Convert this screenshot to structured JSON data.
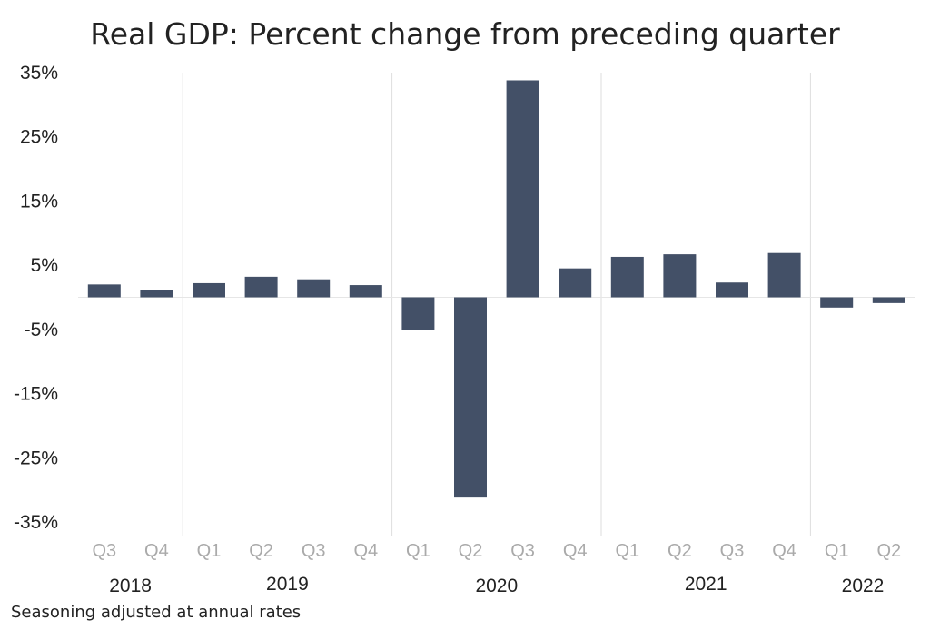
{
  "chart_data": {
    "type": "bar",
    "title": "Real GDP: Percent change from preceding quarter",
    "footnote": "Seasoning adjusted at annual rates",
    "categories": [
      "Q3",
      "Q4",
      "Q1",
      "Q2",
      "Q3",
      "Q4",
      "Q1",
      "Q2",
      "Q3",
      "Q4",
      "Q1",
      "Q2",
      "Q3",
      "Q4",
      "Q1",
      "Q2"
    ],
    "years": [
      {
        "label": "2018",
        "start": 0,
        "end": 1
      },
      {
        "label": "2019",
        "start": 2,
        "end": 5
      },
      {
        "label": "2020",
        "start": 6,
        "end": 9
      },
      {
        "label": "2021",
        "start": 10,
        "end": 13
      },
      {
        "label": "2022",
        "start": 14,
        "end": 15
      }
    ],
    "values": [
      2.0,
      1.2,
      2.2,
      3.2,
      2.8,
      1.9,
      -5.1,
      -31.2,
      33.8,
      4.5,
      6.3,
      6.7,
      2.3,
      6.9,
      -1.6,
      -0.9
    ],
    "yticks": [
      "35%",
      "25%",
      "15%",
      "5%",
      "-5%",
      "-15%",
      "-25%",
      "-35%"
    ],
    "ylim": [
      -35,
      35
    ],
    "bar_color": "#435067",
    "grid": false
  }
}
